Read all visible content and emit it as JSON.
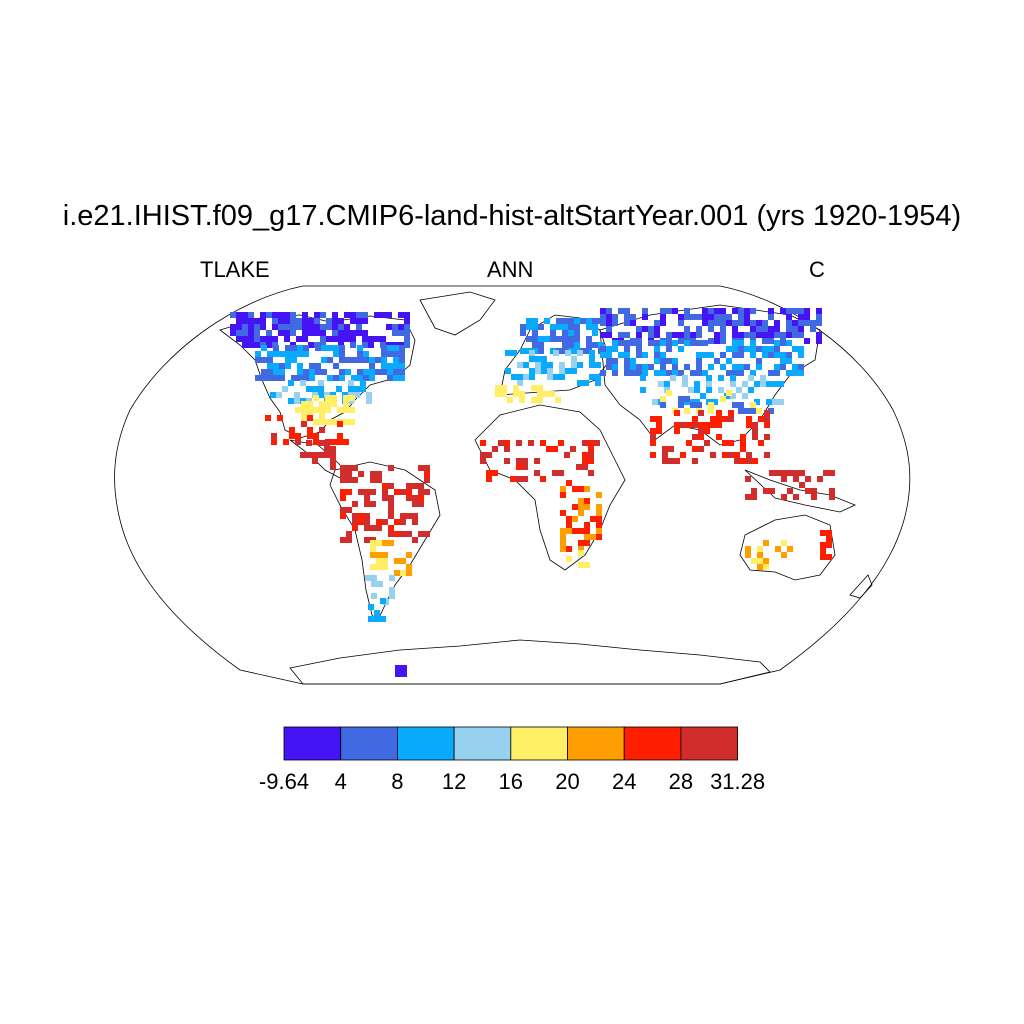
{
  "title": "i.e21.IHIST.f09_g17.CMIP6-land-hist-altStartYear.001 (yrs 1920-1954)",
  "left_label": "TLAKE",
  "center_label": "ANN",
  "right_label": "C",
  "legend": {
    "colors": [
      "#4414f5",
      "#4169e1",
      "#0aaaff",
      "#96d2f0",
      "#ffee66",
      "#ff9e00",
      "#ff1e00",
      "#d22d2d"
    ],
    "ticks": [
      "-9.64",
      "4",
      "8",
      "12",
      "16",
      "20",
      "24",
      "28",
      "31.28"
    ]
  },
  "map": {
    "projection": "Robinson",
    "variable": "lake temperature",
    "land_outline": "#000000",
    "ocean": "#ffffff"
  }
}
